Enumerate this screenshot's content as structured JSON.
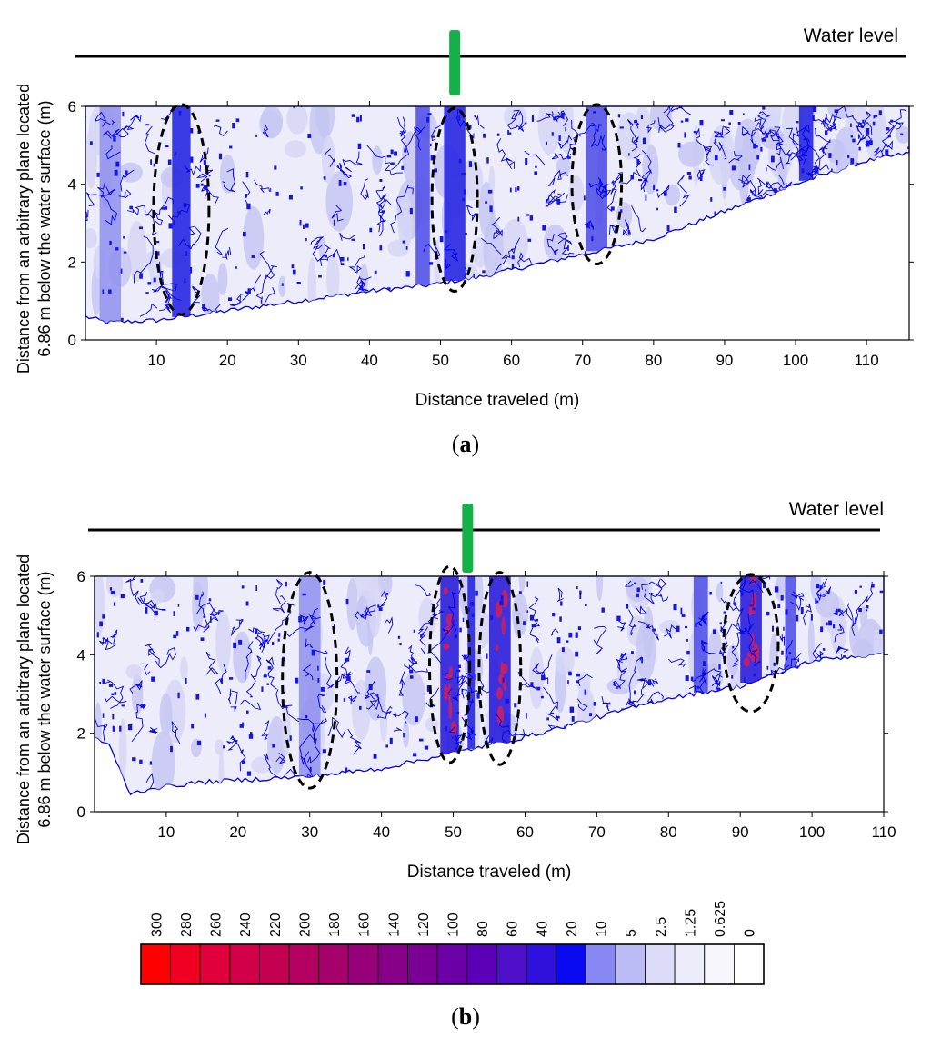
{
  "colors": {
    "contour": "#0000ee",
    "dense": "#1515e6",
    "frame": "#000000",
    "marker": "#15b04a",
    "ellipse": "#000000"
  },
  "chart_data": [
    {
      "type": "heatmap",
      "panel_label": "a",
      "xlabel": "Distance traveled (m)",
      "ylabel_line1": "Distance from an arbitrary plane located",
      "ylabel_line2": "6.86 m below the water surface (m)",
      "annotation": "Water level",
      "xlim": [
        0,
        116
      ],
      "ylim": [
        0,
        6
      ],
      "x_ticks": [
        10,
        20,
        30,
        40,
        50,
        60,
        70,
        80,
        90,
        100,
        110
      ],
      "y_ticks": [
        0,
        2,
        4,
        6
      ],
      "marker_x": 52,
      "bed_profile": [
        [
          0,
          0.6
        ],
        [
          3,
          0.45
        ],
        [
          10,
          0.5
        ],
        [
          20,
          0.75
        ],
        [
          30,
          1.0
        ],
        [
          40,
          1.25
        ],
        [
          48,
          1.4
        ],
        [
          55,
          1.6
        ],
        [
          60,
          1.8
        ],
        [
          70,
          2.2
        ],
        [
          80,
          2.6
        ],
        [
          90,
          3.3
        ],
        [
          100,
          4.0
        ],
        [
          105,
          4.3
        ],
        [
          110,
          4.6
        ],
        [
          116,
          4.8
        ]
      ],
      "highlight_zones": [
        {
          "cx": 13.5,
          "cy": 3.35,
          "rx": 3.9,
          "ry": 2.7
        },
        {
          "cx": 52,
          "cy": 3.6,
          "rx": 3.2,
          "ry": 2.35
        },
        {
          "cx": 72,
          "cy": 4.0,
          "rx": 3.5,
          "ry": 2.05
        }
      ],
      "dense_bands": [
        {
          "x": 13.5,
          "w": 2.6,
          "level": 3
        },
        {
          "x": 3.5,
          "w": 3.0,
          "level": 1
        },
        {
          "x": 47.5,
          "w": 2.0,
          "level": 2
        },
        {
          "x": 52.0,
          "w": 3.0,
          "level": 3
        },
        {
          "x": 72.0,
          "w": 3.0,
          "level": 2
        },
        {
          "x": 101.5,
          "w": 2.0,
          "level": 3
        }
      ]
    },
    {
      "type": "heatmap",
      "panel_label": "b",
      "xlabel": "Distance traveled (m)",
      "ylabel_line1": "Distance from  an arbitrary plane  located",
      "ylabel_line2": "6.86 m below  the water surface (m)",
      "annotation": "Water level",
      "xlim": [
        0,
        110
      ],
      "ylim": [
        0,
        6
      ],
      "x_ticks": [
        10,
        20,
        30,
        40,
        50,
        60,
        70,
        80,
        90,
        100,
        110
      ],
      "y_ticks": [
        0,
        2,
        4,
        6
      ],
      "marker_x": 52,
      "bed_profile": [
        [
          0,
          1.9
        ],
        [
          2,
          1.7
        ],
        [
          5,
          0.45
        ],
        [
          8,
          0.6
        ],
        [
          15,
          0.75
        ],
        [
          25,
          0.85
        ],
        [
          30,
          0.9
        ],
        [
          40,
          1.1
        ],
        [
          50,
          1.5
        ],
        [
          60,
          1.9
        ],
        [
          70,
          2.4
        ],
        [
          80,
          2.9
        ],
        [
          90,
          3.2
        ],
        [
          95,
          3.5
        ],
        [
          100,
          3.85
        ],
        [
          105,
          3.95
        ],
        [
          110,
          4.0
        ]
      ],
      "highlight_zones": [
        {
          "cx": 30,
          "cy": 3.35,
          "rx": 3.8,
          "ry": 2.75
        },
        {
          "cx": 49.5,
          "cy": 3.75,
          "rx": 2.8,
          "ry": 2.5
        },
        {
          "cx": 56.5,
          "cy": 3.65,
          "rx": 2.9,
          "ry": 2.45
        },
        {
          "cx": 91.5,
          "cy": 4.3,
          "rx": 3.8,
          "ry": 1.75
        }
      ],
      "dense_bands": [
        {
          "x": 30,
          "w": 3.0,
          "level": 1
        },
        {
          "x": 49.5,
          "w": 2.6,
          "level": 4
        },
        {
          "x": 52.5,
          "w": 1.0,
          "level": 3
        },
        {
          "x": 56.5,
          "w": 3.0,
          "level": 4
        },
        {
          "x": 84.5,
          "w": 2.0,
          "level": 2
        },
        {
          "x": 91.5,
          "w": 3.0,
          "level": 4
        },
        {
          "x": 97.0,
          "w": 1.5,
          "level": 2
        }
      ]
    }
  ],
  "colorbar": {
    "labels": [
      "300",
      "280",
      "260",
      "240",
      "220",
      "200",
      "180",
      "160",
      "140",
      "120",
      "100",
      "80",
      "60",
      "40",
      "20",
      "10",
      "5",
      "2.5",
      "1.25",
      "0.625",
      "0"
    ],
    "colors": [
      "#ff0000",
      "#f00020",
      "#e2003c",
      "#d20048",
      "#c40050",
      "#b40060",
      "#a5006c",
      "#960078",
      "#880088",
      "#7a0095",
      "#6b00a6",
      "#5c00b8",
      "#4d10c8",
      "#3010dc",
      "#0a0af0",
      "#8888f4",
      "#bbbbf6",
      "#dcdcf8",
      "#ececfa",
      "#f6f6fc",
      "#ffffff"
    ]
  }
}
